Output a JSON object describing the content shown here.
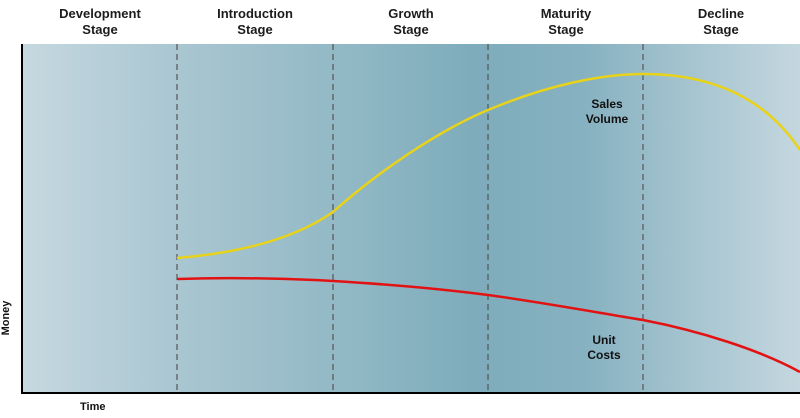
{
  "stages": [
    {
      "line1": "Development",
      "line2": "Stage"
    },
    {
      "line1": "Introduction",
      "line2": "Stage"
    },
    {
      "line1": "Growth",
      "line2": "Stage"
    },
    {
      "line1": "Maturity",
      "line2": "Stage"
    },
    {
      "line1": "Decline",
      "line2": "Stage"
    }
  ],
  "curves": {
    "sales": {
      "line1": "Sales",
      "line2": "Volume",
      "color": "#e8d21a"
    },
    "costs": {
      "line1": "Unit",
      "line2": "Costs",
      "color": "#e31212"
    }
  },
  "axes": {
    "y": "Money",
    "x": "Time"
  },
  "colors": {
    "background_light": "#c4d6de",
    "background_dark": "#80adbc",
    "divider": "#555555",
    "axis": "#000000"
  }
}
